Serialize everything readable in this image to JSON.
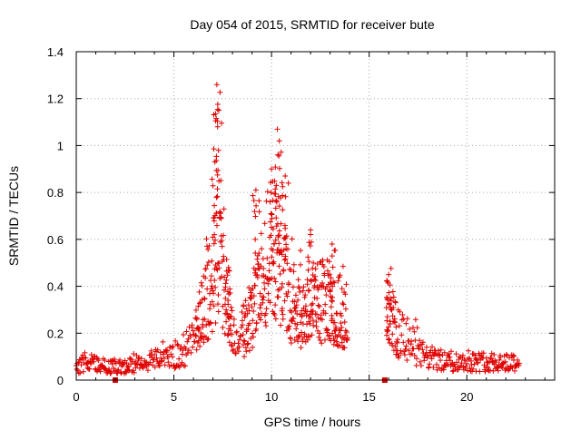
{
  "chart_data": {
    "type": "scatter",
    "title": "Day 054 of 2015, SRMTID for receiver bute",
    "xlabel": "GPS time / hours",
    "ylabel": "SRMTID / TECUs",
    "xlim": [
      0,
      24.5
    ],
    "ylim": [
      0,
      1.4
    ],
    "x_ticks": [
      "0",
      "5",
      "10",
      "15",
      "20"
    ],
    "y_ticks": [
      "0",
      "0.2",
      "0.4",
      "0.6",
      "0.8",
      "1",
      "1.2",
      "1.4"
    ],
    "grid": true,
    "series_color": "#e00000",
    "marker": "plus",
    "series": [
      {
        "name": "SRMTID",
        "profile_x": [
          0,
          0.5,
          1,
          1.5,
          2,
          2.5,
          3,
          3.5,
          4,
          4.5,
          5,
          5.5,
          6,
          6.5,
          7,
          7.3,
          7.6,
          8,
          8.5,
          9,
          9.5,
          10,
          10.5,
          11,
          11.5,
          12,
          12.5,
          13,
          13.5,
          13.9,
          15.9,
          16.5,
          17,
          17.5,
          18,
          19,
          20,
          21,
          22,
          22.7
        ],
        "profile_y": [
          0.05,
          0.09,
          0.07,
          0.06,
          0.06,
          0.06,
          0.07,
          0.08,
          0.09,
          0.09,
          0.1,
          0.12,
          0.18,
          0.3,
          0.45,
          0.55,
          0.4,
          0.2,
          0.2,
          0.3,
          0.45,
          0.6,
          0.5,
          0.35,
          0.3,
          0.3,
          0.35,
          0.35,
          0.3,
          0.3,
          0.3,
          0.2,
          0.18,
          0.12,
          0.1,
          0.08,
          0.08,
          0.08,
          0.08,
          0.08
        ],
        "peaks": [
          {
            "x": 7.2,
            "y": 1.26
          },
          {
            "x": 7.3,
            "y": 1.15
          },
          {
            "x": 7.1,
            "y": 0.93
          },
          {
            "x": 10.3,
            "y": 1.07
          },
          {
            "x": 10.4,
            "y": 1.02
          },
          {
            "x": 10.0,
            "y": 0.9
          },
          {
            "x": 10.7,
            "y": 0.87
          },
          {
            "x": 9.2,
            "y": 0.81
          },
          {
            "x": 12.0,
            "y": 0.64
          },
          {
            "x": 13.1,
            "y": 0.58
          },
          {
            "x": 16.0,
            "y": 0.45
          },
          {
            "x": 7.8,
            "y": 0.48
          }
        ],
        "gap": [
          13.9,
          15.9
        ]
      }
    ],
    "zero_markers": [
      {
        "x": 2.0,
        "y": 0
      },
      {
        "x": 15.8,
        "y": 0
      }
    ]
  }
}
